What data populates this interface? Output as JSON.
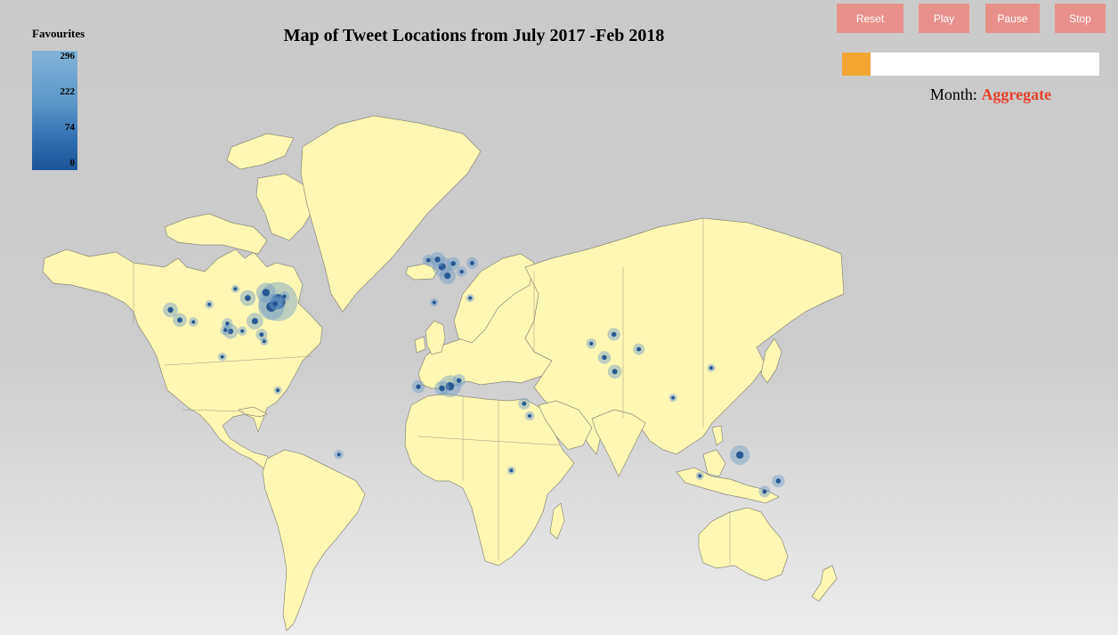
{
  "title": "Map of Tweet Locations from July 2017 -Feb 2018",
  "legend": {
    "title": "Favourites",
    "ticks": [
      "296",
      "222",
      "74",
      "0"
    ]
  },
  "controls": {
    "reset": "Reset",
    "play": "Play",
    "pause": "Pause",
    "stop": "Stop"
  },
  "slider": {
    "position": 0
  },
  "month": {
    "label": "Month:",
    "value": "Aggregate"
  },
  "colors": {
    "land": "#fff8b4",
    "button": "#e8918a",
    "slider_handle": "#f2a531",
    "month_value": "#e8412a",
    "bubble_dark": "#1b4f8f",
    "bubble_light": "#6f9cc7"
  },
  "points": [
    {
      "lon": -74.0,
      "lat": 40.7,
      "v": 296
    },
    {
      "lon": -77.0,
      "lat": 38.9,
      "v": 120
    },
    {
      "lon": -79.4,
      "lat": 43.7,
      "v": 60
    },
    {
      "lon": -84.4,
      "lat": 33.7,
      "v": 40
    },
    {
      "lon": -87.6,
      "lat": 41.9,
      "v": 35
    },
    {
      "lon": -95.4,
      "lat": 29.8,
      "v": 30
    },
    {
      "lon": -97.7,
      "lat": 30.3,
      "v": 10
    },
    {
      "lon": -96.8,
      "lat": 32.8,
      "v": 12
    },
    {
      "lon": -90.1,
      "lat": 29.9,
      "v": 8
    },
    {
      "lon": -80.2,
      "lat": 25.8,
      "v": 5
    },
    {
      "lon": -81.4,
      "lat": 28.5,
      "v": 15
    },
    {
      "lon": -118.2,
      "lat": 34.1,
      "v": 25
    },
    {
      "lon": -122.4,
      "lat": 37.8,
      "v": 30
    },
    {
      "lon": -112.1,
      "lat": 33.4,
      "v": 8
    },
    {
      "lon": -104.9,
      "lat": 39.7,
      "v": 6
    },
    {
      "lon": -93.2,
      "lat": 44.9,
      "v": 5
    },
    {
      "lon": -71.1,
      "lat": 42.4,
      "v": 10
    },
    {
      "lon": -75.2,
      "lat": 40.0,
      "v": 20
    },
    {
      "lon": -99.1,
      "lat": 19.4,
      "v": 6
    },
    {
      "lon": -0.1,
      "lat": 51.5,
      "v": 60
    },
    {
      "lon": -2.2,
      "lat": 53.5,
      "v": 30
    },
    {
      "lon": -6.3,
      "lat": 53.3,
      "v": 15
    },
    {
      "lon": 2.3,
      "lat": 48.9,
      "v": 40
    },
    {
      "lon": 4.9,
      "lat": 52.4,
      "v": 20
    },
    {
      "lon": 13.4,
      "lat": 52.5,
      "v": 15
    },
    {
      "lon": 8.7,
      "lat": 50.1,
      "v": 10
    },
    {
      "lon": 12.5,
      "lat": 41.9,
      "v": 5
    },
    {
      "lon": -3.7,
      "lat": 40.4,
      "v": 5
    },
    {
      "lon": 3.4,
      "lat": 6.5,
      "v": 80
    },
    {
      "lon": 7.5,
      "lat": 9.1,
      "v": 20
    },
    {
      "lon": -0.2,
      "lat": 5.6,
      "v": 30
    },
    {
      "lon": -10.8,
      "lat": 6.3,
      "v": 20
    },
    {
      "lon": 36.8,
      "lat": -1.3,
      "v": 15
    },
    {
      "lon": 39.3,
      "lat": -6.8,
      "v": 8
    },
    {
      "lon": 31.0,
      "lat": -29.9,
      "v": 5
    },
    {
      "lon": 77.2,
      "lat": 28.6,
      "v": 20
    },
    {
      "lon": 72.9,
      "lat": 19.1,
      "v": 20
    },
    {
      "lon": 77.6,
      "lat": 13.0,
      "v": 25
    },
    {
      "lon": 88.4,
      "lat": 22.6,
      "v": 15
    },
    {
      "lon": 67.0,
      "lat": 24.9,
      "v": 10
    },
    {
      "lon": 151.2,
      "lat": -33.9,
      "v": 20
    },
    {
      "lon": 145.0,
      "lat": -37.8,
      "v": 15
    },
    {
      "lon": 133.9,
      "lat": -23.7,
      "v": 60
    },
    {
      "lon": 115.9,
      "lat": -32.0,
      "v": 5
    },
    {
      "lon": 121.0,
      "lat": 14.6,
      "v": 5
    },
    {
      "lon": 103.8,
      "lat": 1.35,
      "v": 5
    },
    {
      "lon": -46.6,
      "lat": -23.5,
      "v": 8
    },
    {
      "lon": -74.1,
      "lat": 4.7,
      "v": 5
    }
  ]
}
